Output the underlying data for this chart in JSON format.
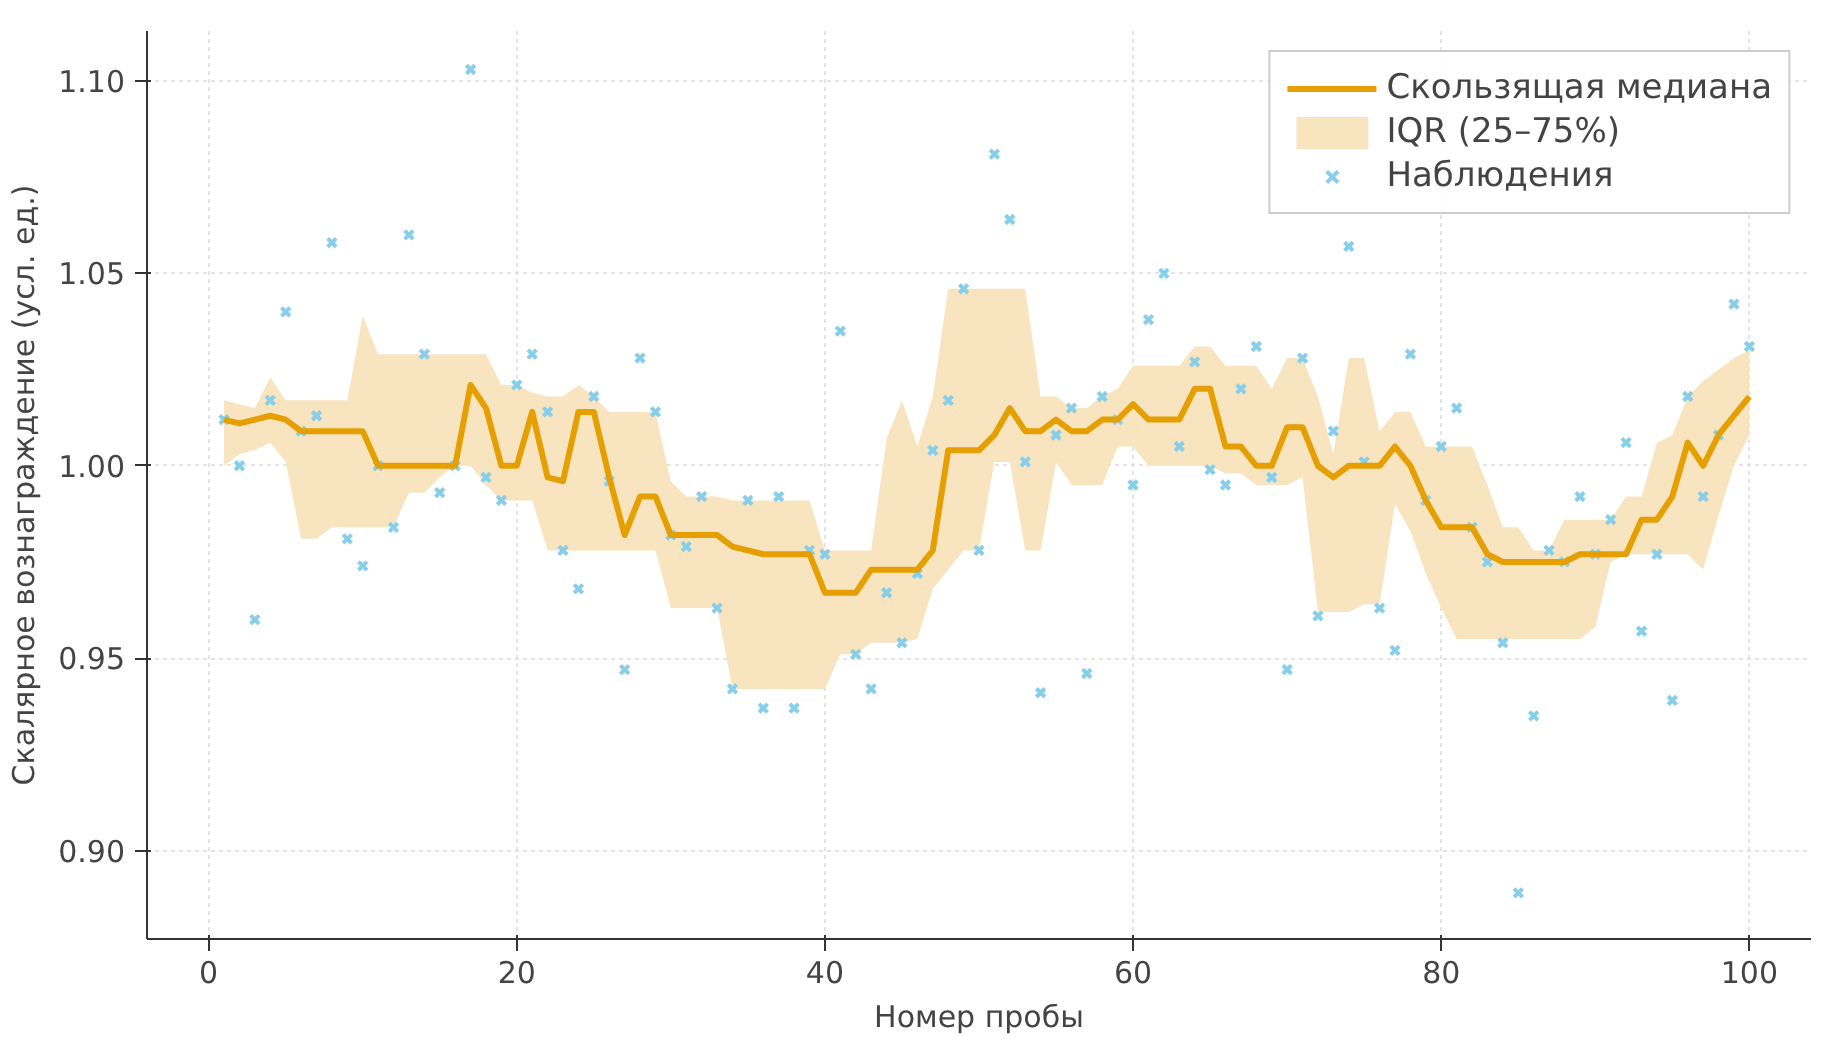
{
  "chart_data": {
    "type": "line",
    "xlabel": "Номер пробы",
    "ylabel": "Скалярное вознаграждение (усл. ед.)",
    "x": [
      1,
      2,
      3,
      4,
      5,
      6,
      7,
      8,
      9,
      10,
      11,
      12,
      13,
      14,
      15,
      16,
      17,
      18,
      19,
      20,
      21,
      22,
      23,
      24,
      25,
      26,
      27,
      28,
      29,
      30,
      31,
      32,
      33,
      34,
      35,
      36,
      37,
      38,
      39,
      40,
      41,
      42,
      43,
      44,
      45,
      46,
      47,
      48,
      49,
      50,
      51,
      52,
      53,
      54,
      55,
      56,
      57,
      58,
      59,
      60,
      61,
      62,
      63,
      64,
      65,
      66,
      67,
      68,
      69,
      70,
      71,
      72,
      73,
      74,
      75,
      76,
      77,
      78,
      79,
      80,
      81,
      82,
      83,
      84,
      85,
      86,
      87,
      88,
      89,
      90,
      91,
      92,
      93,
      94,
      95,
      96,
      97,
      98,
      99,
      100
    ],
    "series": [
      {
        "name": "Скользящая медиана",
        "color": "#e69f00",
        "line_style": "solid",
        "marker": "none",
        "values": [
          1.012,
          1.011,
          1.012,
          1.013,
          1.012,
          1.009,
          1.009,
          1.009,
          1.009,
          1.009,
          1.0,
          1.0,
          1.0,
          1.0,
          1.0,
          1.0,
          1.021,
          1.015,
          1.0,
          1.0,
          1.014,
          0.997,
          0.996,
          1.014,
          1.014,
          0.997,
          0.982,
          0.992,
          0.992,
          0.982,
          0.982,
          0.982,
          0.982,
          0.979,
          0.978,
          0.977,
          0.977,
          0.977,
          0.977,
          0.967,
          0.967,
          0.967,
          0.973,
          0.973,
          0.973,
          0.973,
          0.978,
          1.004,
          1.004,
          1.004,
          1.008,
          1.015,
          1.009,
          1.009,
          1.012,
          1.009,
          1.009,
          1.012,
          1.012,
          1.016,
          1.012,
          1.012,
          1.012,
          1.02,
          1.02,
          1.005,
          1.005,
          1.0,
          1.0,
          1.01,
          1.01,
          1.0,
          0.997,
          1.0,
          1.0,
          1.0,
          1.005,
          1.0,
          0.991,
          0.984,
          0.984,
          0.984,
          0.977,
          0.975,
          0.975,
          0.975,
          0.975,
          0.975,
          0.977,
          0.977,
          0.977,
          0.977,
          0.986,
          0.986,
          0.992,
          1.006,
          1.0,
          1.008,
          1.013,
          1.018
        ],
        "lower": [
          1.0,
          1.003,
          1.004,
          1.006,
          1.001,
          0.981,
          0.981,
          0.984,
          0.984,
          0.984,
          0.984,
          0.984,
          0.993,
          0.993,
          0.997,
          1.0,
          1.0,
          0.995,
          0.991,
          0.991,
          0.991,
          0.978,
          0.978,
          0.978,
          0.978,
          0.978,
          0.978,
          0.978,
          0.978,
          0.963,
          0.963,
          0.963,
          0.963,
          0.942,
          0.942,
          0.942,
          0.942,
          0.942,
          0.942,
          0.942,
          0.951,
          0.951,
          0.954,
          0.954,
          0.954,
          0.955,
          0.968,
          0.973,
          0.978,
          0.978,
          1.001,
          1.001,
          0.978,
          0.978,
          1.001,
          0.995,
          0.995,
          0.995,
          1.005,
          1.005,
          1.0,
          1.0,
          1.0,
          1.0,
          1.0,
          0.998,
          0.998,
          0.995,
          0.995,
          0.995,
          0.997,
          0.962,
          0.962,
          0.962,
          0.964,
          0.964,
          0.99,
          0.983,
          0.972,
          0.963,
          0.955,
          0.955,
          0.955,
          0.955,
          0.955,
          0.955,
          0.955,
          0.955,
          0.955,
          0.958,
          0.975,
          0.977,
          0.977,
          0.977,
          0.977,
          0.977,
          0.973,
          0.987,
          1.0,
          1.008
        ],
        "upper": [
          1.017,
          1.016,
          1.015,
          1.023,
          1.017,
          1.017,
          1.017,
          1.017,
          1.017,
          1.039,
          1.029,
          1.029,
          1.029,
          1.029,
          1.029,
          1.029,
          1.029,
          1.029,
          1.021,
          1.021,
          1.019,
          1.018,
          1.018,
          1.021,
          1.018,
          1.014,
          1.014,
          1.014,
          1.014,
          0.996,
          0.992,
          0.992,
          0.992,
          0.991,
          0.991,
          0.991,
          0.991,
          0.991,
          0.991,
          0.978,
          0.978,
          0.978,
          0.978,
          1.007,
          1.017,
          1.005,
          1.018,
          1.046,
          1.046,
          1.046,
          1.046,
          1.046,
          1.046,
          1.018,
          1.018,
          1.015,
          1.015,
          1.018,
          1.02,
          1.026,
          1.026,
          1.026,
          1.026,
          1.031,
          1.031,
          1.026,
          1.026,
          1.026,
          1.02,
          1.028,
          1.028,
          1.018,
          1.003,
          1.028,
          1.028,
          1.009,
          1.014,
          1.014,
          1.005,
          1.005,
          1.005,
          1.005,
          0.995,
          0.984,
          0.984,
          0.978,
          0.978,
          0.986,
          0.986,
          0.986,
          0.986,
          0.992,
          0.992,
          1.006,
          1.008,
          1.018,
          1.022,
          1.025,
          1.028,
          1.03
        ]
      },
      {
        "type": "area",
        "name": "IQR (25–75%)",
        "color": "#f8e5c0",
        "values": [
          null,
          null,
          null,
          null,
          null,
          null,
          null,
          null,
          null,
          null,
          null,
          null,
          null,
          null,
          null,
          null,
          null,
          null,
          null,
          null,
          null,
          null,
          null,
          null,
          null,
          null,
          null,
          null,
          null,
          null,
          null,
          null,
          null,
          null,
          null,
          null,
          null,
          null,
          null,
          null,
          null,
          null,
          null,
          null,
          null,
          null,
          null,
          null,
          null,
          null,
          null,
          null,
          null,
          null,
          null,
          null,
          null,
          null,
          null,
          null,
          null,
          null,
          null,
          null,
          null,
          null,
          null,
          null,
          null,
          null,
          null,
          null,
          null,
          null,
          null,
          null,
          null,
          null,
          null,
          null,
          null,
          null,
          null,
          null,
          null,
          null,
          null,
          null,
          null,
          null,
          null,
          null,
          null,
          null,
          null,
          null,
          null,
          null,
          null,
          null
        ]
      },
      {
        "type": "scatter",
        "name": "Наблюдения",
        "color": "#87ceeb",
        "marker": "cross",
        "values": [
          1.012,
          1.0,
          0.96,
          1.017,
          1.04,
          1.009,
          1.013,
          1.058,
          0.981,
          0.974,
          1.0,
          0.984,
          1.06,
          1.029,
          0.993,
          1.0,
          1.103,
          0.997,
          0.991,
          1.021,
          1.029,
          1.014,
          0.978,
          0.968,
          1.018,
          0.996,
          0.947,
          1.028,
          1.014,
          0.982,
          0.979,
          0.992,
          0.963,
          0.942,
          0.991,
          0.937,
          0.992,
          0.937,
          0.978,
          0.977,
          1.035,
          0.951,
          0.942,
          0.967,
          0.954,
          0.972,
          1.004,
          1.017,
          1.046,
          0.978,
          1.081,
          1.064,
          1.001,
          0.941,
          1.008,
          1.015,
          0.946,
          1.018,
          1.012,
          0.995,
          1.038,
          1.05,
          1.005,
          1.027,
          0.999,
          0.995,
          1.02,
          1.031,
          0.997,
          0.947,
          1.028,
          0.961,
          1.009,
          1.057,
          1.001,
          0.963,
          0.952,
          1.029,
          0.991,
          1.005,
          1.015,
          0.984,
          0.975,
          0.954,
          0.889,
          0.935,
          0.978,
          0.975,
          0.992,
          0.977,
          0.986,
          1.006,
          0.957,
          0.977,
          0.939,
          1.018,
          0.992,
          1.008,
          1.042,
          1.031
        ]
      }
    ],
    "xlim": [
      -4,
      104
    ],
    "ylim": [
      0.877,
      1.113
    ],
    "xticks": [
      0,
      20,
      40,
      60,
      80,
      100
    ],
    "yticks": [
      {
        "value": 0.9,
        "label": "0.90"
      },
      0.95,
      {
        "value": 1.0,
        "label": "1.00"
      },
      1.05,
      {
        "value": 1.1,
        "label": "1.10"
      }
    ],
    "grid": true,
    "legend": "top right"
  }
}
